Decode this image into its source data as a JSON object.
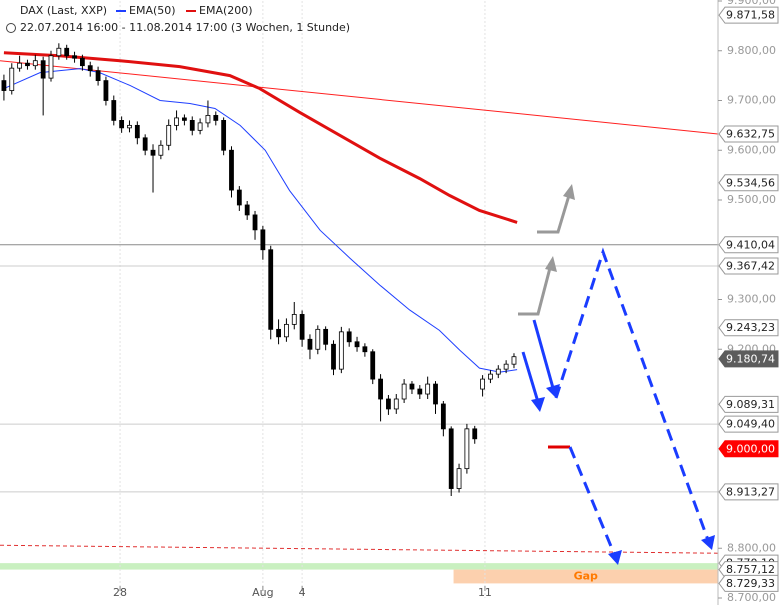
{
  "chart_data": {
    "type": "candlestick",
    "title": "DAX (Last, XXP)",
    "subtitle": "22.07.2014 16:00 - 11.08.2014 17:00 (3 Wochen, 1 Stunde)",
    "up_color": "#ffffff",
    "down_color": "#000000",
    "ohlc": {
      "open": [
        9740,
        9720,
        9765,
        9775,
        9770,
        9780,
        9745,
        9790,
        9805,
        9790,
        9785,
        9770,
        9760,
        9740,
        9700,
        9660,
        9645,
        9650,
        9625,
        9600,
        9590,
        9610,
        9650,
        9665,
        9660,
        9640,
        9655,
        9670,
        9660,
        9600,
        9520,
        9490,
        9470,
        9440,
        9400,
        9240,
        9225,
        9250,
        9270,
        9220,
        9200,
        9240,
        9210,
        9160,
        9235,
        9215,
        9205,
        9195,
        9140,
        9100,
        9080,
        9100,
        9130,
        9120,
        9110,
        9130,
        9090,
        9040,
        8920,
        8960,
        9040,
        9120,
        9140,
        9150,
        9160,
        9170
      ],
      "high": [
        9752,
        9775,
        9790,
        9782,
        9792,
        9788,
        9800,
        9815,
        9812,
        9798,
        9792,
        9778,
        9768,
        9748,
        9710,
        9668,
        9660,
        9658,
        9632,
        9612,
        9620,
        9662,
        9680,
        9672,
        9668,
        9664,
        9700,
        9678,
        9666,
        9608,
        9528,
        9498,
        9478,
        9448,
        9408,
        9260,
        9262,
        9295,
        9278,
        9230,
        9248,
        9246,
        9218,
        9245,
        9242,
        9225,
        9212,
        9200,
        9150,
        9108,
        9110,
        9140,
        9136,
        9128,
        9145,
        9136,
        9096,
        9045,
        8970,
        9050,
        9046,
        9148,
        9158,
        9168,
        9178,
        9192
      ],
      "low": [
        9700,
        9712,
        9758,
        9762,
        9762,
        9670,
        9738,
        9782,
        9782,
        9776,
        9760,
        9748,
        9730,
        9690,
        9650,
        9635,
        9636,
        9612,
        9590,
        9515,
        9582,
        9600,
        9640,
        9650,
        9630,
        9632,
        9646,
        9650,
        9590,
        9505,
        9478,
        9460,
        9420,
        9380,
        9220,
        9210,
        9215,
        9240,
        9205,
        9180,
        9190,
        9198,
        9148,
        9152,
        9205,
        9195,
        9185,
        9130,
        9055,
        9068,
        9070,
        9092,
        9110,
        9100,
        9100,
        9070,
        9025,
        8905,
        8912,
        8950,
        9010,
        9105,
        9132,
        9142,
        9152,
        9162
      ],
      "close": [
        9720,
        9765,
        9775,
        9770,
        9780,
        9745,
        9790,
        9805,
        9790,
        9785,
        9770,
        9760,
        9740,
        9700,
        9660,
        9645,
        9650,
        9625,
        9600,
        9590,
        9610,
        9650,
        9665,
        9660,
        9640,
        9655,
        9670,
        9660,
        9600,
        9520,
        9490,
        9470,
        9440,
        9400,
        9240,
        9225,
        9250,
        9270,
        9220,
        9200,
        9240,
        9210,
        9160,
        9235,
        9215,
        9205,
        9195,
        9140,
        9100,
        9080,
        9100,
        9130,
        9120,
        9110,
        9130,
        9090,
        9040,
        8920,
        8960,
        9040,
        9020,
        9140,
        9150,
        9160,
        9170,
        9185
      ]
    },
    "series": [
      {
        "name": "EMA(50)",
        "color": "#1f3fff",
        "x": [
          0,
          4.6,
          9.7,
          12.2,
          16.1,
          19.9,
          23.7,
          26.9,
          30.1,
          33.3,
          36.4,
          40.3,
          44.1,
          47.9,
          51.7,
          55.5,
          58.1,
          60.6,
          63.2,
          65.4
        ],
        "values": [
          9724,
          9756,
          9764,
          9756,
          9730,
          9700,
          9694,
          9684,
          9650,
          9600,
          9519,
          9439,
          9383,
          9329,
          9279,
          9238,
          9198,
          9162,
          9154,
          9159
        ]
      },
      {
        "name": "EMA(200)",
        "color": "#e01010",
        "x": [
          0,
          7.1,
          14.8,
          22.4,
          28.8,
          32.6,
          37.7,
          42.8,
          47.9,
          53,
          56.8,
          60.6,
          65.4
        ],
        "values": [
          9796,
          9790,
          9780,
          9768,
          9750,
          9724,
          9676,
          9630,
          9584,
          9543,
          9509,
          9479,
          9455
        ]
      }
    ],
    "trendlines": [
      {
        "color": "#ff2020",
        "x": [
          -0.5,
          91
        ],
        "values": [
          9780,
          9632.75
        ]
      },
      {
        "color": "#e03030",
        "dashed": true,
        "x": [
          -0.5,
          91
        ],
        "values": [
          8806,
          8790
        ]
      }
    ],
    "levels": [
      {
        "value": 9871.58,
        "label": "9.871,58"
      },
      {
        "value": 9632.75,
        "label": "9.632,75"
      },
      {
        "value": 9534.56,
        "label": "9.534,56"
      },
      {
        "value": 9410.04,
        "label": "9.410,04",
        "line_color": "#8a8a8a"
      },
      {
        "value": 9367.42,
        "label": "9.367,42",
        "line_color": "#cccccc"
      },
      {
        "value": 9243.23,
        "label": "9.243,23"
      },
      {
        "value": 9180.74,
        "label": "9.180,74",
        "fill": "#5c5c5c"
      },
      {
        "value": 9089.31,
        "label": "9.089,31"
      },
      {
        "value": 9049.4,
        "label": "9.049,40",
        "line_color": "#cccccc"
      },
      {
        "value": 9000.0,
        "label": "9.000,00",
        "fill": "#ff0000"
      },
      {
        "value": 8913.27,
        "label": "8.913,27",
        "line_color": "#cccccc"
      },
      {
        "value": 8770.1,
        "label": "8.770,10"
      },
      {
        "value": 8757.12,
        "label": "8.757,12"
      },
      {
        "value": 8729.33,
        "label": "8.729,33"
      }
    ],
    "zones": [
      {
        "from": 8757.12,
        "to": 8770.1,
        "color": "#c9f0c0"
      },
      {
        "from": 8729.33,
        "to": 8757.12,
        "x_from": 57.3,
        "label": "Gap",
        "color": "#fcd0ae"
      }
    ],
    "xlim": [
      -0.5,
      91
    ],
    "ylim": [
      8700,
      9900
    ],
    "xticks": [
      {
        "value": 14.8,
        "label": "28"
      },
      {
        "value": 33,
        "label": "Aug"
      },
      {
        "value": 38,
        "label": "4"
      },
      {
        "value": 61.3,
        "label": "11"
      }
    ],
    "yticks": [
      {
        "value": 9900,
        "label": "9.900,00"
      },
      {
        "value": 9800,
        "label": "9.800,00"
      },
      {
        "value": 9700,
        "label": "9.700,00"
      },
      {
        "value": 9600,
        "label": "9.600,00"
      },
      {
        "value": 9500,
        "label": "9.500,00"
      },
      {
        "value": 9300,
        "label": "9.300,00"
      },
      {
        "value": 9200,
        "label": "9.200,00"
      },
      {
        "value": 8800,
        "label": "8.800,00"
      },
      {
        "value": 8700,
        "label": "8.700,00"
      }
    ]
  }
}
